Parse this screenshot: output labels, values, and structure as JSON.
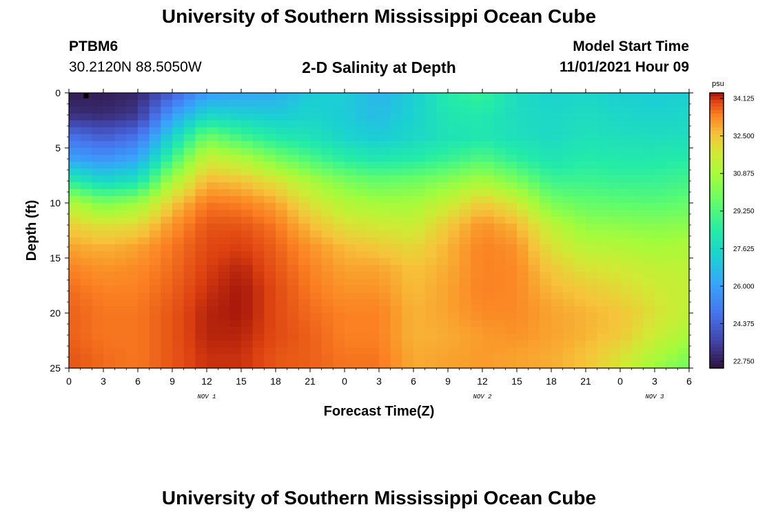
{
  "page": {
    "title_top": "University of Southern Mississippi Ocean Cube",
    "title_bottom": "University of Southern Mississippi Ocean Cube",
    "station_id": "PTBM6",
    "coordinates": "30.2120N  88.5050W",
    "subtitle": "2-D Salinity at Depth",
    "model_start_label": "Model Start Time",
    "model_start_value": "11/01/2021 Hour 09"
  },
  "chart_data": {
    "type": "heatmap",
    "title": "2-D Salinity at Depth",
    "xlabel": "Forecast Time(Z)",
    "ylabel": "Depth (ft)",
    "x_range_hours": [
      0,
      54
    ],
    "y_range_ft": [
      0,
      25
    ],
    "y_inverted": true,
    "x_ticks": [
      {
        "hour": 0,
        "label": "0"
      },
      {
        "hour": 3,
        "label": "3"
      },
      {
        "hour": 6,
        "label": "6"
      },
      {
        "hour": 9,
        "label": "9"
      },
      {
        "hour": 12,
        "label": "12"
      },
      {
        "hour": 15,
        "label": "15"
      },
      {
        "hour": 18,
        "label": "18"
      },
      {
        "hour": 21,
        "label": "21"
      },
      {
        "hour": 24,
        "label": "0"
      },
      {
        "hour": 27,
        "label": "3"
      },
      {
        "hour": 30,
        "label": "6"
      },
      {
        "hour": 33,
        "label": "9"
      },
      {
        "hour": 36,
        "label": "12"
      },
      {
        "hour": 39,
        "label": "15"
      },
      {
        "hour": 42,
        "label": "18"
      },
      {
        "hour": 45,
        "label": "21"
      },
      {
        "hour": 48,
        "label": "0"
      },
      {
        "hour": 51,
        "label": "3"
      },
      {
        "hour": 54,
        "label": "6"
      }
    ],
    "y_ticks": [
      0,
      5,
      10,
      15,
      20,
      25
    ],
    "date_labels": [
      {
        "hour": 12,
        "label": "NOV 1"
      },
      {
        "hour": 36,
        "label": "NOV 2"
      },
      {
        "hour": 51,
        "label": "NOV 3"
      }
    ],
    "colorbar": {
      "unit": "psu",
      "min": 22.75,
      "max": 34.125,
      "ticks": [
        "34.125",
        "32.500",
        "30.875",
        "29.250",
        "27.625",
        "26.000",
        "24.375",
        "22.750"
      ]
    },
    "profile_hours": [
      0,
      3,
      6,
      9,
      12,
      15,
      18,
      21,
      24,
      27,
      30,
      33,
      36,
      39,
      42,
      45,
      48,
      51,
      54
    ],
    "profile_depths_ft": [
      0,
      2,
      4,
      6,
      8,
      10,
      12,
      14,
      16,
      18,
      20,
      22,
      24,
      25
    ],
    "salinity_profiles": [
      [
        23.0,
        23.4,
        25.0,
        26.2,
        28.5,
        31.0,
        32.2,
        32.8,
        33.2,
        33.4,
        33.5,
        33.5,
        33.6,
        33.6
      ],
      [
        23.0,
        23.3,
        24.5,
        25.8,
        27.6,
        30.0,
        31.8,
        32.6,
        33.0,
        33.2,
        33.3,
        33.3,
        33.4,
        33.4
      ],
      [
        23.2,
        23.6,
        25.0,
        26.3,
        28.0,
        30.5,
        32.0,
        32.8,
        33.1,
        33.2,
        33.3,
        33.3,
        33.3,
        33.3
      ],
      [
        24.5,
        26.0,
        27.5,
        29.0,
        30.8,
        32.3,
        33.0,
        33.3,
        33.4,
        33.5,
        33.6,
        33.6,
        33.6,
        33.6
      ],
      [
        26.0,
        27.6,
        29.8,
        31.5,
        32.6,
        33.3,
        33.6,
        33.7,
        33.8,
        33.9,
        34.0,
        34.0,
        33.9,
        33.9
      ],
      [
        26.2,
        27.4,
        29.0,
        31.0,
        32.4,
        33.2,
        33.6,
        33.8,
        34.0,
        34.1,
        34.1,
        34.0,
        33.9,
        33.9
      ],
      [
        26.4,
        27.2,
        28.3,
        30.0,
        31.8,
        32.8,
        33.3,
        33.5,
        33.6,
        33.7,
        33.7,
        33.7,
        33.6,
        33.6
      ],
      [
        27.2,
        27.5,
        28.0,
        29.2,
        30.8,
        31.8,
        32.5,
        33.0,
        33.2,
        33.3,
        33.4,
        33.5,
        33.5,
        33.5
      ],
      [
        27.3,
        27.2,
        27.5,
        28.5,
        30.0,
        31.0,
        31.8,
        32.5,
        32.8,
        33.0,
        33.2,
        33.2,
        33.3,
        33.3
      ],
      [
        26.6,
        26.8,
        27.2,
        28.2,
        29.6,
        30.7,
        31.6,
        32.3,
        32.8,
        33.0,
        33.2,
        33.2,
        33.3,
        33.3
      ],
      [
        27.3,
        27.4,
        27.6,
        28.4,
        29.8,
        30.7,
        31.4,
        32.0,
        32.4,
        32.5,
        32.6,
        32.6,
        32.7,
        32.7
      ],
      [
        28.4,
        28.2,
        28.0,
        28.8,
        30.2,
        31.4,
        32.3,
        32.6,
        32.7,
        32.8,
        32.8,
        32.7,
        32.8,
        32.8
      ],
      [
        28.8,
        28.3,
        28.2,
        29.3,
        30.8,
        32.3,
        33.0,
        33.2,
        33.2,
        33.2,
        33.1,
        32.9,
        32.9,
        32.9
      ],
      [
        27.8,
        27.8,
        27.9,
        28.6,
        30.0,
        31.6,
        32.6,
        33.0,
        33.1,
        33.1,
        33.1,
        33.0,
        32.8,
        32.8
      ],
      [
        27.4,
        27.6,
        27.7,
        28.1,
        28.9,
        30.0,
        31.2,
        31.8,
        32.3,
        32.6,
        32.8,
        32.8,
        32.7,
        32.7
      ],
      [
        27.6,
        27.8,
        28.0,
        28.4,
        28.9,
        29.6,
        30.4,
        31.1,
        31.8,
        32.3,
        32.6,
        32.6,
        32.4,
        32.4
      ],
      [
        27.3,
        27.6,
        27.9,
        28.3,
        28.8,
        29.5,
        30.3,
        31.0,
        31.6,
        32.0,
        32.4,
        32.3,
        31.8,
        31.7
      ],
      [
        27.2,
        27.5,
        27.8,
        28.3,
        28.8,
        29.4,
        30.2,
        30.8,
        31.3,
        31.6,
        31.8,
        31.5,
        30.9,
        30.5
      ],
      [
        27.3,
        27.6,
        27.9,
        28.4,
        29.0,
        29.6,
        30.3,
        30.9,
        31.2,
        31.3,
        31.2,
        30.8,
        30.1,
        29.8
      ]
    ]
  }
}
